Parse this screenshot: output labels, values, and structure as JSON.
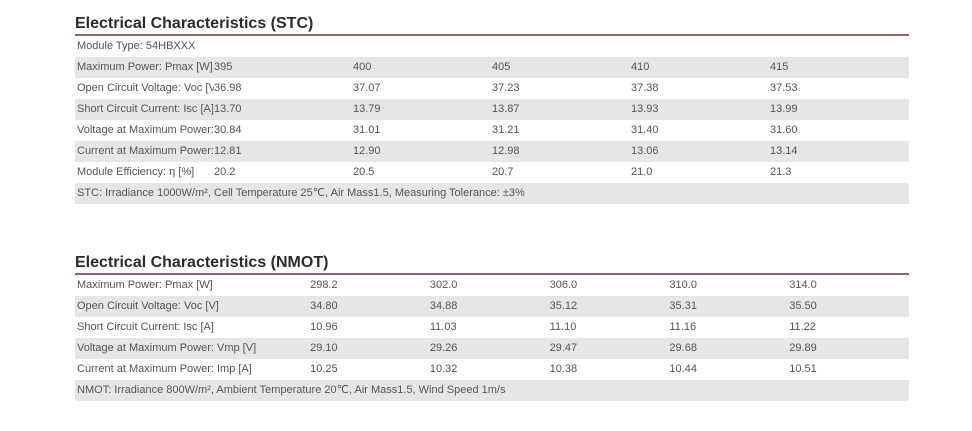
{
  "stc": {
    "title": "Electrical Characteristics (STC)",
    "module_type": "Module Type: 54HBXXX",
    "rows": [
      {
        "label": "Maximum Power: Pmax [W]",
        "values": [
          "395",
          "400",
          "405",
          "410",
          "415"
        ]
      },
      {
        "label": "Open Circuit Voltage: Voc [V]",
        "values": [
          "36.98",
          "37.07",
          "37.23",
          "37.38",
          "37.53"
        ]
      },
      {
        "label": "Short Circuit Current: Isc [A]",
        "values": [
          "13.70",
          "13.79",
          "13.87",
          "13.93",
          "13.99"
        ]
      },
      {
        "label": "Voltage at Maximum Power: Vmp [V]",
        "values": [
          "30.84",
          "31.01",
          "31.21",
          "31.40",
          "31.60"
        ]
      },
      {
        "label": "Current at Maximum Power: Imp [A]",
        "values": [
          "12.81",
          "12.90",
          "12.98",
          "13.06",
          "13.14"
        ]
      },
      {
        "label": "Module Efficiency: η [%]",
        "values": [
          "20.2",
          "20.5",
          "20.7",
          "21.0",
          "21.3"
        ]
      }
    ],
    "note": "STC: Irradiance 1000W/m², Cell Temperature 25℃, Air Mass1.5, Measuring Tolerance: ±3%"
  },
  "nmot": {
    "title": "Electrical Characteristics (NMOT)",
    "rows": [
      {
        "label": "Maximum Power: Pmax [W]",
        "values": [
          "298.2",
          "302.0",
          "306.0",
          "310.0",
          "314.0"
        ]
      },
      {
        "label": "Open Circuit Voltage: Voc [V]",
        "values": [
          "34.80",
          "34.88",
          "35.12",
          "35.31",
          "35.50"
        ]
      },
      {
        "label": "Short Circuit Current: Isc [A]",
        "values": [
          "10.96",
          "11.03",
          "11.10",
          "11.16",
          "11.22"
        ]
      },
      {
        "label": "Voltage at Maximum Power: Vmp [V]",
        "values": [
          "29.10",
          "29.26",
          "29.47",
          "29.68",
          "29.89"
        ]
      },
      {
        "label": "Current at Maximum Power: Imp [A]",
        "values": [
          "10.25",
          "10.32",
          "10.38",
          "10.44",
          "10.51"
        ]
      }
    ],
    "note": "NMOT: Irradiance 800W/m², Ambient Temperature 20℃, Air Mass1.5, Wind Speed 1m/s"
  },
  "colors": {
    "accent_rule": "#8a6a5e",
    "row_shade": "#e6e6e6"
  }
}
